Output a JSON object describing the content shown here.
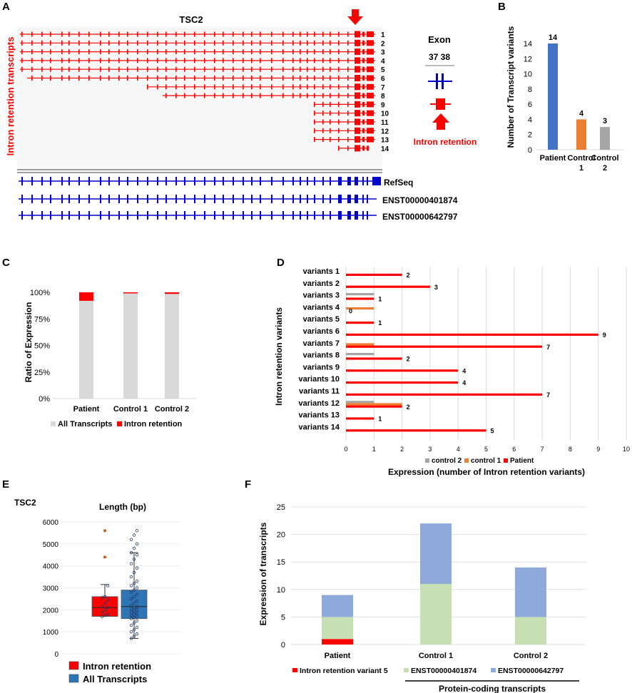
{
  "panel_letters": {
    "a": "A",
    "b": "B",
    "c": "C",
    "d": "D",
    "e": "E",
    "f": "F"
  },
  "panel_a": {
    "gene_title": "TSC2",
    "ylabel": "Intron retention transcripts",
    "variant_numbers": [
      "1",
      "2",
      "3",
      "4",
      "5",
      "6",
      "7",
      "8",
      "9",
      "10",
      "11",
      "12",
      "13",
      "14"
    ],
    "reference_labels": [
      "RefSeq",
      "ENST00000401874",
      "ENST00000642797"
    ],
    "exon_title": "Exon",
    "exon_numbers": "37 38",
    "legend_text": "Intron retention",
    "colors": {
      "retention": "#ff0000",
      "reference": "#0000cc",
      "track_bg": "#f7f7f7"
    }
  },
  "chart_data": [
    {
      "id": "B",
      "type": "bar",
      "categories": [
        "Patient",
        "Control\n1",
        "Control\n2"
      ],
      "values": [
        14,
        4,
        3
      ],
      "colors": [
        "#4472c4",
        "#ed7d31",
        "#a5a5a5"
      ],
      "ylabel": "Number of Transcript variants",
      "ylim": [
        0,
        14
      ],
      "yticks": [
        0,
        2,
        4,
        6,
        8,
        10,
        12,
        14
      ],
      "data_labels": [
        "14",
        "4",
        "3"
      ]
    },
    {
      "id": "C",
      "type": "bar",
      "stacked": true,
      "categories": [
        "Patient",
        "Control 1",
        "Control 2"
      ],
      "series": [
        {
          "name": "All Transcripts",
          "color": "#d9d9d9",
          "values": [
            0.92,
            0.99,
            0.985
          ]
        },
        {
          "name": "Intron retention",
          "color": "#ff0000",
          "values": [
            0.08,
            0.01,
            0.015
          ]
        }
      ],
      "ylabel": "Ratio of Expression",
      "yticks": [
        "0%",
        "25%",
        "50%",
        "75%",
        "100%"
      ],
      "ylim": [
        0,
        1
      ],
      "legend": "bottom"
    },
    {
      "id": "D",
      "type": "bar",
      "orientation": "horizontal",
      "categories": [
        "variants 1",
        "variants 2",
        "variants 3",
        "variants 4",
        "variants 5",
        "variants 6",
        "variants 7",
        "variants 8",
        "variants 9",
        "variants 10",
        "variants 11",
        "variants 12",
        "variants 13",
        "variants 14"
      ],
      "series": [
        {
          "name": "control 2",
          "color": "#a5a5a5",
          "values": [
            0,
            0,
            1,
            0,
            0,
            0,
            0,
            1,
            0,
            0,
            0,
            1,
            0,
            0
          ]
        },
        {
          "name": "control 1",
          "color": "#ed7d31",
          "values": [
            0,
            0,
            0,
            1,
            0,
            0,
            1,
            0,
            0,
            0,
            0,
            2,
            0,
            0
          ]
        },
        {
          "name": "Patient",
          "color": "#ff0000",
          "values": [
            2,
            3,
            1,
            0,
            1,
            9,
            7,
            2,
            4,
            4,
            7,
            2,
            1,
            5
          ]
        }
      ],
      "data_labels": [
        "2",
        "3",
        "1",
        "0",
        "1",
        "9",
        "7",
        "2",
        "4",
        "4",
        "7",
        "2",
        "1",
        "5"
      ],
      "xlim": [
        0,
        10
      ],
      "xticks": [
        0,
        1,
        2,
        3,
        4,
        5,
        6,
        7,
        8,
        9,
        10
      ],
      "xlabel": "Expression (number of Intron retention variants)",
      "ylabel": "Intron retention variants",
      "legend": "bottom"
    },
    {
      "id": "E",
      "type": "box",
      "gene_label": "TSC2",
      "title": "Length (bp)",
      "ylim": [
        0,
        6000
      ],
      "yticks": [
        0,
        1000,
        2000,
        3000,
        4000,
        5000,
        6000
      ],
      "series": [
        {
          "name": "Intron retention",
          "color": "#ff0000",
          "min": 1700,
          "q1": 1700,
          "median": 2100,
          "q3": 2600,
          "max": 3150,
          "outliers": [
            4400,
            5600
          ],
          "points": [
            1700,
            1750,
            1800,
            1900,
            2000,
            2100,
            2150,
            2300,
            2450,
            2550,
            2600,
            3100
          ]
        },
        {
          "name": "All Transcripts",
          "color": "#2e75b6",
          "min": 700,
          "q1": 1600,
          "median": 2150,
          "q3": 2900,
          "max": 4600,
          "points": [
            700,
            800,
            900,
            1000,
            1100,
            1200,
            1300,
            1400,
            1500,
            1600,
            1650,
            1700,
            1750,
            1800,
            1850,
            1900,
            1950,
            2000,
            2050,
            2100,
            2150,
            2200,
            2300,
            2400,
            2500,
            2600,
            2700,
            2800,
            2900,
            3000,
            3100,
            3200,
            3300,
            3500,
            3700,
            3900,
            4100,
            4300,
            4500,
            4600,
            4800,
            5000,
            5200,
            5400,
            5600
          ]
        }
      ],
      "legend": [
        "Intron retention",
        "All Transcripts"
      ]
    },
    {
      "id": "F",
      "type": "bar",
      "stacked": true,
      "categories": [
        "Patient",
        "Control 1",
        "Control 2"
      ],
      "series": [
        {
          "name": "Intron retention variant 5",
          "color": "#ff0000",
          "values": [
            1,
            0,
            0
          ]
        },
        {
          "name": "ENST00000401874",
          "color": "#c6e0b4",
          "values": [
            4,
            11,
            5
          ]
        },
        {
          "name": "ENST00000642797",
          "color": "#8eaadb",
          "values": [
            4,
            11,
            9
          ]
        }
      ],
      "ylabel": "Expression of transcripts",
      "ylim": [
        0,
        25
      ],
      "yticks": [
        0,
        5,
        10,
        15,
        20,
        25
      ],
      "bracket_label": "Protein-coding transcripts",
      "legend": "bottom"
    }
  ]
}
